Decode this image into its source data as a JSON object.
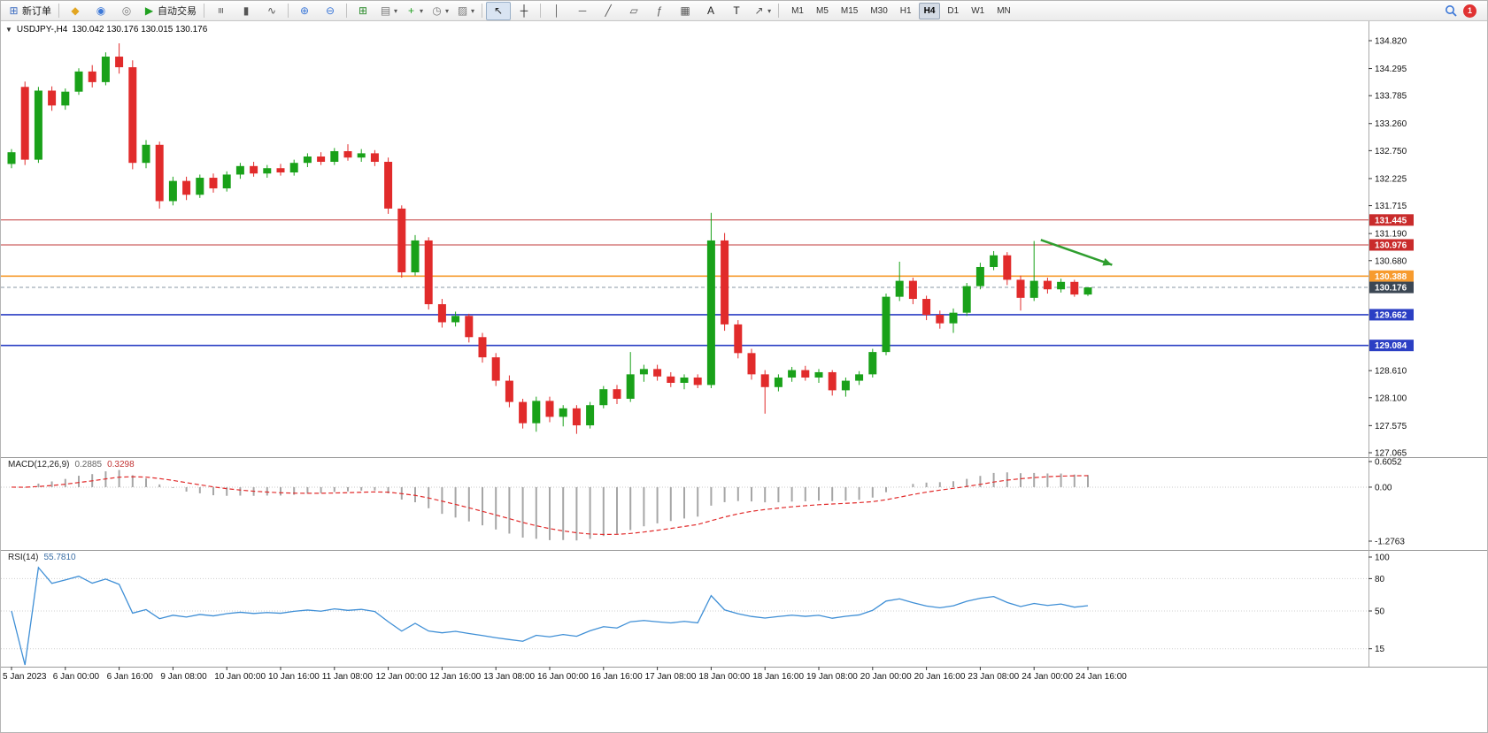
{
  "toolbar": {
    "items": [
      {
        "name": "new-order-button",
        "icon": "new-order-icon",
        "glyph": "⊞",
        "color": "#3c6cc0",
        "label": "新订单"
      },
      {
        "type": "sep"
      },
      {
        "name": "metaeditor-button",
        "icon": "metaeditor-icon",
        "glyph": "◆",
        "color": "#e2a520"
      },
      {
        "name": "profile-button",
        "icon": "profile-icon",
        "glyph": "◉",
        "color": "#3c78d8"
      },
      {
        "name": "market-watch-button",
        "icon": "market-watch-icon",
        "glyph": "◎",
        "color": "#7a7a7a"
      },
      {
        "name": "autotrading-button",
        "icon": "autotrading-play-icon",
        "glyph": "▶",
        "color": "#21a121",
        "label": "自动交易"
      },
      {
        "type": "sep"
      },
      {
        "name": "bar-chart-button",
        "icon": "bar-chart-icon",
        "glyph": "≡",
        "color": "#555555"
      },
      {
        "name": "candlestick-chart-button",
        "icon": "candlestick-chart-icon",
        "glyph": "▮",
        "color": "#555555"
      },
      {
        "name": "line-chart-button",
        "icon": "line-chart-icon",
        "glyph": "∿",
        "color": "#555555"
      },
      {
        "type": "sep"
      },
      {
        "name": "zoom-in-button",
        "icon": "zoom-in-icon",
        "glyph": "⊕",
        "color": "#3c78d8"
      },
      {
        "name": "zoom-out-button",
        "icon": "zoom-out-icon",
        "glyph": "⊖",
        "color": "#3c78d8"
      },
      {
        "type": "sep"
      },
      {
        "name": "tile-windows-button",
        "icon": "tile-windows-icon",
        "glyph": "⊞",
        "color": "#2a8a2a"
      },
      {
        "name": "auto-arrange-button",
        "icon": "auto-arrange-icon",
        "glyph": "▤",
        "color": "#7a7a7a",
        "dropdown": true
      },
      {
        "name": "new-chart-button",
        "icon": "new-chart-icon",
        "glyph": "+",
        "color": "#21a121",
        "dropdown": true
      },
      {
        "name": "periods-button",
        "icon": "clock-icon",
        "glyph": "◷",
        "color": "#7a7a7a",
        "dropdown": true
      },
      {
        "name": "templates-button",
        "icon": "templates-icon",
        "glyph": "▨",
        "color": "#7a7a7a",
        "dropdown": true
      },
      {
        "type": "sep"
      },
      {
        "name": "cursor-button",
        "icon": "cursor-icon",
        "glyph": "↖",
        "color": "#222222",
        "active": true
      },
      {
        "name": "crosshair-button",
        "icon": "crosshair-icon",
        "glyph": "┼",
        "color": "#222222"
      },
      {
        "type": "sep"
      },
      {
        "name": "vertical-line-button",
        "icon": "vertical-line-icon",
        "glyph": "│",
        "color": "#555555"
      },
      {
        "name": "horizontal-line-button",
        "icon": "horizontal-line-icon",
        "glyph": "─",
        "color": "#555555"
      },
      {
        "name": "trendline-button",
        "icon": "trendline-icon",
        "glyph": "╱",
        "color": "#555555"
      },
      {
        "name": "channel-button",
        "icon": "channel-icon",
        "glyph": "▱",
        "color": "#555555"
      },
      {
        "name": "fibonacci-button",
        "icon": "fibonacci-icon",
        "glyph": "ƒ",
        "color": "#555555"
      },
      {
        "name": "shapes-button",
        "icon": "shapes-icon",
        "glyph": "▦",
        "color": "#555555"
      },
      {
        "name": "text-button",
        "icon": "text-icon",
        "glyph": "A",
        "color": "#222222"
      },
      {
        "name": "text-label-button",
        "icon": "text-label-icon",
        "glyph": "T",
        "color": "#222222"
      },
      {
        "name": "arrows-button",
        "icon": "arrow-object-icon",
        "glyph": "↗",
        "color": "#555555",
        "dropdown": true
      },
      {
        "type": "sep"
      }
    ],
    "timeframes": {
      "options": [
        "M1",
        "M5",
        "M15",
        "M30",
        "H1",
        "H4",
        "D1",
        "W1",
        "MN"
      ],
      "active": "H4"
    },
    "right": {
      "notification_count": "1"
    }
  },
  "chart": {
    "title": {
      "collapse_glyph": "▼",
      "symbol_period": "USDJPY-,H4",
      "ohlc": "130.042 130.176 130.015 130.176"
    }
  },
  "chart_data": {
    "type": "candlestick",
    "symbol": "USDJPY-",
    "timeframe": "H4",
    "ohlc_display": {
      "open": "130.042",
      "high": "130.176",
      "low": "130.015",
      "close": "130.176"
    },
    "price_axis_labels": [
      "134.820",
      "134.295",
      "133.785",
      "133.260",
      "132.750",
      "132.225",
      "131.715",
      "131.190",
      "130.680",
      "128.610",
      "128.100",
      "127.575",
      "127.065"
    ],
    "price_badges": [
      {
        "text": "131.445",
        "price": 131.445,
        "bg": "#c92b2b",
        "line_color": "#c23b3b",
        "line_width": 1
      },
      {
        "text": "130.976",
        "price": 130.976,
        "bg": "#c92b2b",
        "line_color": "#c23b3b",
        "line_width": 1
      },
      {
        "text": "130.388",
        "price": 130.388,
        "bg": "#f79b2e",
        "line_color": "#f79b2e",
        "line_width": 1.6
      },
      {
        "text": "130.176",
        "price": 130.176,
        "bg": "#3b4754",
        "line_color": "#8a97a5",
        "line_width": 1,
        "dashed": true,
        "is_current": true
      },
      {
        "text": "129.662",
        "price": 129.662,
        "bg": "#2b3fc4",
        "line_color": "#2b3fc4",
        "line_width": 1.6
      },
      {
        "text": "129.084",
        "price": 129.084,
        "bg": "#2b3fc4",
        "line_color": "#2b3fc4",
        "line_width": 1.6
      }
    ],
    "time_axis_labels": [
      "5 Jan 2023",
      "6 Jan 00:00",
      "6 Jan 16:00",
      "9 Jan 08:00",
      "10 Jan 00:00",
      "10 Jan 16:00",
      "11 Jan 08:00",
      "12 Jan 00:00",
      "12 Jan 16:00",
      "13 Jan 08:00",
      "16 Jan 00:00",
      "16 Jan 16:00",
      "17 Jan 08:00",
      "18 Jan 00:00",
      "18 Jan 16:00",
      "19 Jan 08:00",
      "20 Jan 00:00",
      "20 Jan 16:00",
      "23 Jan 08:00",
      "24 Jan 00:00",
      "24 Jan 16:00"
    ],
    "bars_per_time_label": 4,
    "candle_colors": {
      "bull": "#19a119",
      "bear": "#e12b2b"
    },
    "candles": [
      [
        132.5,
        132.78,
        132.42,
        132.72
      ],
      [
        133.95,
        134.05,
        132.48,
        132.58
      ],
      [
        132.58,
        133.95,
        132.52,
        133.88
      ],
      [
        133.88,
        133.96,
        133.5,
        133.6
      ],
      [
        133.6,
        133.92,
        133.52,
        133.86
      ],
      [
        133.86,
        134.3,
        133.8,
        134.24
      ],
      [
        134.24,
        134.36,
        133.94,
        134.04
      ],
      [
        134.04,
        134.6,
        133.98,
        134.52
      ],
      [
        134.52,
        134.77,
        134.2,
        134.32
      ],
      [
        134.32,
        134.45,
        132.4,
        132.52
      ],
      [
        132.52,
        132.95,
        132.42,
        132.86
      ],
      [
        132.86,
        132.92,
        131.66,
        131.8
      ],
      [
        131.8,
        132.26,
        131.72,
        132.18
      ],
      [
        132.18,
        132.26,
        131.82,
        131.92
      ],
      [
        131.92,
        132.3,
        131.86,
        132.24
      ],
      [
        132.24,
        132.32,
        131.96,
        132.04
      ],
      [
        132.04,
        132.36,
        131.98,
        132.3
      ],
      [
        132.3,
        132.52,
        132.22,
        132.46
      ],
      [
        132.46,
        132.54,
        132.26,
        132.32
      ],
      [
        132.32,
        132.48,
        132.24,
        132.42
      ],
      [
        132.42,
        132.5,
        132.28,
        132.34
      ],
      [
        132.34,
        132.58,
        132.28,
        132.52
      ],
      [
        132.52,
        132.7,
        132.44,
        132.64
      ],
      [
        132.64,
        132.72,
        132.48,
        132.54
      ],
      [
        132.54,
        132.8,
        132.48,
        132.74
      ],
      [
        132.74,
        132.87,
        132.56,
        132.62
      ],
      [
        132.62,
        132.78,
        132.54,
        132.7
      ],
      [
        132.7,
        132.76,
        132.46,
        132.54
      ],
      [
        132.54,
        132.62,
        131.56,
        131.66
      ],
      [
        131.66,
        131.72,
        130.36,
        130.46
      ],
      [
        130.46,
        131.16,
        130.4,
        131.06
      ],
      [
        131.06,
        131.12,
        129.76,
        129.86
      ],
      [
        129.86,
        129.96,
        129.42,
        129.52
      ],
      [
        129.52,
        129.72,
        129.44,
        129.64
      ],
      [
        129.64,
        129.68,
        129.14,
        129.24
      ],
      [
        129.24,
        129.32,
        128.76,
        128.86
      ],
      [
        128.86,
        128.94,
        128.32,
        128.42
      ],
      [
        128.42,
        128.52,
        127.92,
        128.02
      ],
      [
        128.02,
        128.08,
        127.52,
        127.62
      ],
      [
        127.62,
        128.12,
        127.46,
        128.04
      ],
      [
        128.04,
        128.12,
        127.64,
        127.74
      ],
      [
        127.74,
        127.96,
        127.56,
        127.9
      ],
      [
        127.9,
        127.96,
        127.42,
        127.58
      ],
      [
        127.58,
        128.02,
        127.52,
        127.96
      ],
      [
        127.96,
        128.32,
        127.9,
        128.26
      ],
      [
        128.26,
        128.34,
        127.98,
        128.08
      ],
      [
        128.08,
        128.96,
        128.02,
        128.54
      ],
      [
        128.54,
        128.72,
        128.4,
        128.64
      ],
      [
        128.64,
        128.72,
        128.42,
        128.5
      ],
      [
        128.5,
        128.58,
        128.3,
        128.38
      ],
      [
        128.38,
        128.54,
        128.26,
        128.48
      ],
      [
        128.48,
        128.54,
        128.28,
        128.34
      ],
      [
        128.34,
        131.58,
        128.28,
        131.06
      ],
      [
        131.06,
        131.2,
        129.36,
        129.48
      ],
      [
        129.48,
        129.56,
        128.84,
        128.94
      ],
      [
        128.94,
        129.02,
        128.44,
        128.54
      ],
      [
        128.54,
        128.62,
        127.8,
        128.3
      ],
      [
        128.3,
        128.54,
        128.22,
        128.48
      ],
      [
        128.48,
        128.68,
        128.4,
        128.62
      ],
      [
        128.62,
        128.7,
        128.42,
        128.48
      ],
      [
        128.48,
        128.64,
        128.38,
        128.58
      ],
      [
        128.58,
        128.62,
        128.14,
        128.24
      ],
      [
        128.24,
        128.48,
        128.12,
        128.42
      ],
      [
        128.42,
        128.6,
        128.34,
        128.54
      ],
      [
        128.54,
        129.02,
        128.48,
        128.96
      ],
      [
        128.96,
        130.06,
        128.9,
        130.0
      ],
      [
        130.0,
        130.66,
        129.92,
        130.3
      ],
      [
        130.3,
        130.36,
        129.86,
        129.96
      ],
      [
        129.96,
        130.02,
        129.56,
        129.66
      ],
      [
        129.66,
        129.74,
        129.4,
        129.5
      ],
      [
        129.5,
        129.78,
        129.32,
        129.7
      ],
      [
        129.7,
        130.26,
        129.64,
        130.2
      ],
      [
        130.2,
        130.64,
        130.14,
        130.56
      ],
      [
        130.56,
        130.86,
        130.5,
        130.78
      ],
      [
        130.78,
        130.84,
        130.22,
        130.32
      ],
      [
        130.32,
        130.4,
        129.74,
        129.98
      ],
      [
        129.98,
        131.05,
        129.92,
        130.3
      ],
      [
        130.3,
        130.36,
        130.06,
        130.14
      ],
      [
        130.14,
        130.34,
        130.08,
        130.28
      ],
      [
        130.28,
        130.32,
        130.0,
        130.042
      ],
      [
        130.042,
        130.176,
        130.015,
        130.176
      ]
    ],
    "annotations": [
      {
        "type": "arrow",
        "from_bar": 76.5,
        "from_price": 131.07,
        "to_bar": 81.8,
        "to_price": 130.6,
        "color": "#2f9e2f"
      }
    ],
    "indicators": {
      "macd": {
        "label": "MACD(12,26,9)",
        "value_main": "0.2885",
        "value_signal": "0.3298",
        "fast": 12,
        "slow": 26,
        "signal": 9,
        "axis_labels": [
          "0.6052",
          "0.00",
          "-1.2763"
        ],
        "axis_max": 0.6052,
        "axis_min": -1.2763,
        "histogram_color": "#a6a6a6",
        "signal_color": "#e12b2b"
      },
      "rsi": {
        "label": "RSI(14)",
        "value": "55.7810",
        "period": 14,
        "axis_labels": [
          "100",
          "80",
          "50",
          "15"
        ],
        "levels": [
          80,
          50,
          15
        ],
        "line_color": "#3f8fd6",
        "scale_max": 100,
        "scale_min": 0
      }
    }
  }
}
